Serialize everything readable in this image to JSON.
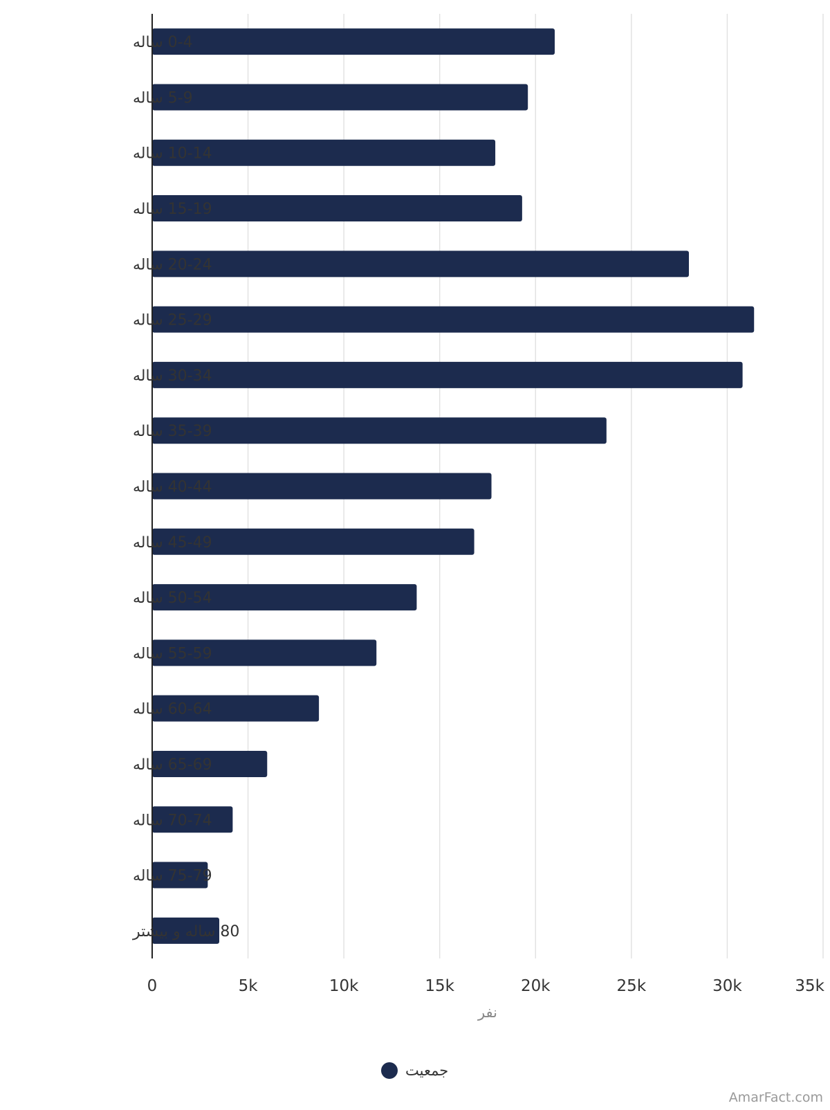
{
  "chart_data": {
    "type": "bar",
    "orientation": "horizontal",
    "categories": [
      "0-4 ساله",
      "5-9 ساله",
      "10-14 ساله",
      "15-19 ساله",
      "20-24 ساله",
      "25-29 ساله",
      "30-34 ساله",
      "35-39 ساله",
      "40-44 ساله",
      "45-49 ساله",
      "50-54 ساله",
      "55-59 ساله",
      "60-64 ساله",
      "65-69 ساله",
      "70-74 ساله",
      "75-79 ساله",
      "80 ساله و بیشتر"
    ],
    "series": [
      {
        "name": "جمعیت",
        "values": [
          21000,
          19600,
          17900,
          19300,
          28000,
          31400,
          30800,
          23700,
          17700,
          16800,
          13800,
          11700,
          8700,
          6000,
          4200,
          2900,
          3500
        ]
      }
    ],
    "xlabel": "نفر",
    "ylabel": "",
    "xlim": [
      0,
      35000
    ],
    "ticks": [
      "0",
      "5k",
      "10k",
      "15k",
      "20k",
      "25k",
      "30k",
      "35k"
    ],
    "grid": true,
    "legend": "bottom",
    "colors": {
      "bar": "#1c2b4e",
      "grid": "#e2e2e2",
      "axis": "#222222",
      "text": "#333333",
      "muted": "#888888"
    },
    "watermark": "AmarFact.com"
  }
}
